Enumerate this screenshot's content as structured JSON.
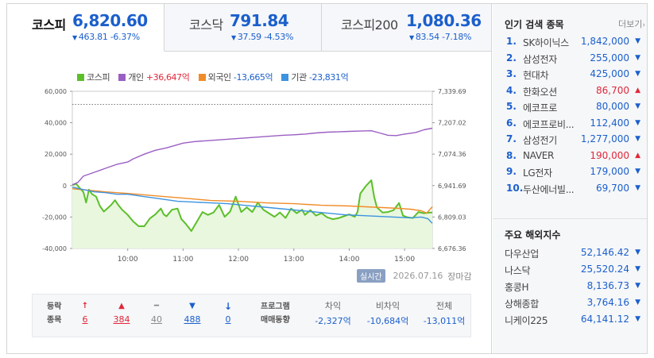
{
  "indices": [
    {
      "name": "코스피",
      "value": "6,820.60",
      "change": "463.81",
      "rate": "-6.37%",
      "active": true
    },
    {
      "name": "코스닥",
      "value": "791.84",
      "change": "37.59",
      "rate": "-4.53%",
      "active": false
    },
    {
      "name": "코스피200",
      "value": "1,080.36",
      "change": "83.54",
      "rate": "-7.18%",
      "active": false
    }
  ],
  "down_arrow": "▼",
  "legend": [
    {
      "name": "코스피",
      "value": "",
      "color": "#5cbf2a"
    },
    {
      "name": "개인",
      "value": "+36,647억",
      "color": "#9a5fc3",
      "tone": "red"
    },
    {
      "name": "외국인",
      "value": "-13,665억",
      "color": "#f08c28",
      "tone": "blue"
    },
    {
      "name": "기관",
      "value": "-23,831억",
      "color": "#3d93e0",
      "tone": "blue"
    }
  ],
  "chart_data": {
    "type": "line",
    "left_axis": {
      "ticks": [
        "60,000",
        "40,000",
        "20,000",
        "0",
        "-20,000",
        "-40,000"
      ],
      "min": -40000,
      "max": 60000
    },
    "right_axis": {
      "ticks": [
        "7,339.69",
        "7,207.02",
        "7,074.36",
        "6,941.69",
        "6,809.03",
        "6,676.36"
      ],
      "min": 6676.36,
      "max": 7339.69
    },
    "x_ticks": [
      "10:00",
      "11:00",
      "12:00",
      "13:00",
      "14:00",
      "15:00"
    ],
    "x_range": [
      9.0,
      15.5
    ],
    "reference_line": 7284.3,
    "series": [
      {
        "name": "코스피",
        "color": "#5cbf2a",
        "axis": "right",
        "fill": true,
        "points": [
          [
            9.0,
            6944
          ],
          [
            9.07,
            6949
          ],
          [
            9.13,
            6932
          ],
          [
            9.2,
            6915
          ],
          [
            9.25,
            6870
          ],
          [
            9.3,
            6925
          ],
          [
            9.36,
            6905
          ],
          [
            9.43,
            6895
          ],
          [
            9.5,
            6855
          ],
          [
            9.57,
            6832
          ],
          [
            9.63,
            6845
          ],
          [
            9.7,
            6860
          ],
          [
            9.77,
            6880
          ],
          [
            9.83,
            6860
          ],
          [
            9.9,
            6840
          ],
          [
            10.0,
            6818
          ],
          [
            10.1,
            6790
          ],
          [
            10.2,
            6770
          ],
          [
            10.3,
            6770
          ],
          [
            10.4,
            6803
          ],
          [
            10.5,
            6820
          ],
          [
            10.6,
            6845
          ],
          [
            10.65,
            6820
          ],
          [
            10.7,
            6812
          ],
          [
            10.8,
            6840
          ],
          [
            10.9,
            6845
          ],
          [
            10.97,
            6800
          ],
          [
            11.05,
            6780
          ],
          [
            11.15,
            6750
          ],
          [
            11.25,
            6790
          ],
          [
            11.35,
            6830
          ],
          [
            11.45,
            6818
          ],
          [
            11.55,
            6828
          ],
          [
            11.65,
            6860
          ],
          [
            11.75,
            6810
          ],
          [
            11.85,
            6832
          ],
          [
            11.95,
            6895
          ],
          [
            12.05,
            6830
          ],
          [
            12.15,
            6850
          ],
          [
            12.25,
            6830
          ],
          [
            12.35,
            6870
          ],
          [
            12.45,
            6840
          ],
          [
            12.55,
            6825
          ],
          [
            12.65,
            6810
          ],
          [
            12.75,
            6828
          ],
          [
            12.85,
            6805
          ],
          [
            12.95,
            6845
          ],
          [
            13.05,
            6825
          ],
          [
            13.15,
            6840
          ],
          [
            13.2,
            6818
          ],
          [
            13.3,
            6838
          ],
          [
            13.4,
            6815
          ],
          [
            13.5,
            6825
          ],
          [
            13.6,
            6808
          ],
          [
            13.7,
            6800
          ],
          [
            13.8,
            6804
          ],
          [
            13.9,
            6812
          ],
          [
            14.0,
            6820
          ],
          [
            14.1,
            6810
          ],
          [
            14.15,
            6830
          ],
          [
            14.2,
            6908
          ],
          [
            14.3,
            6940
          ],
          [
            14.4,
            6964
          ],
          [
            14.45,
            6895
          ],
          [
            14.5,
            6850
          ],
          [
            14.6,
            6828
          ],
          [
            14.7,
            6830
          ],
          [
            14.8,
            6838
          ],
          [
            14.9,
            6868
          ],
          [
            14.97,
            6815
          ],
          [
            15.05,
            6808
          ],
          [
            15.15,
            6805
          ],
          [
            15.25,
            6830
          ],
          [
            15.35,
            6825
          ],
          [
            15.45,
            6828
          ],
          [
            15.5,
            6828
          ]
        ]
      },
      {
        "name": "개인",
        "color": "#9a5fc3",
        "axis": "left",
        "points": [
          [
            9.0,
            500
          ],
          [
            9.1,
            2000
          ],
          [
            9.2,
            6000
          ],
          [
            9.4,
            8500
          ],
          [
            9.6,
            11000
          ],
          [
            9.8,
            13500
          ],
          [
            10.0,
            15000
          ],
          [
            10.1,
            17000
          ],
          [
            10.3,
            20000
          ],
          [
            10.5,
            22500
          ],
          [
            10.7,
            24000
          ],
          [
            10.9,
            26000
          ],
          [
            11.0,
            27000
          ],
          [
            11.2,
            28000
          ],
          [
            11.4,
            28500
          ],
          [
            11.6,
            29000
          ],
          [
            11.8,
            29500
          ],
          [
            12.0,
            30000
          ],
          [
            12.2,
            30500
          ],
          [
            12.4,
            31000
          ],
          [
            12.6,
            31500
          ],
          [
            12.8,
            32000
          ],
          [
            13.0,
            32300
          ],
          [
            13.2,
            32800
          ],
          [
            13.4,
            33500
          ],
          [
            13.6,
            34000
          ],
          [
            13.8,
            34200
          ],
          [
            14.0,
            34500
          ],
          [
            14.2,
            34700
          ],
          [
            14.4,
            34900
          ],
          [
            14.55,
            33500
          ],
          [
            14.7,
            32000
          ],
          [
            14.85,
            31800
          ],
          [
            15.0,
            32800
          ],
          [
            15.2,
            33800
          ],
          [
            15.35,
            35500
          ],
          [
            15.5,
            36500
          ]
        ]
      },
      {
        "name": "외국인",
        "color": "#f08c28",
        "axis": "left",
        "points": [
          [
            9.0,
            -2000
          ],
          [
            9.3,
            -3000
          ],
          [
            9.6,
            -4000
          ],
          [
            10.0,
            -5000
          ],
          [
            10.5,
            -6500
          ],
          [
            11.0,
            -8000
          ],
          [
            11.5,
            -9500
          ],
          [
            12.0,
            -10000
          ],
          [
            12.5,
            -11000
          ],
          [
            13.0,
            -11500
          ],
          [
            13.5,
            -12500
          ],
          [
            14.0,
            -13000
          ],
          [
            14.3,
            -13500
          ],
          [
            14.6,
            -14000
          ],
          [
            14.9,
            -14500
          ],
          [
            15.1,
            -15000
          ],
          [
            15.3,
            -16000
          ],
          [
            15.4,
            -17500
          ],
          [
            15.5,
            -13500
          ]
        ]
      },
      {
        "name": "기관",
        "color": "#3d93e0",
        "axis": "left",
        "points": [
          [
            9.0,
            -1000
          ],
          [
            9.2,
            -2500
          ],
          [
            9.4,
            -4000
          ],
          [
            9.6,
            -4500
          ],
          [
            9.8,
            -5500
          ],
          [
            10.0,
            -5500
          ],
          [
            10.3,
            -7000
          ],
          [
            10.6,
            -8500
          ],
          [
            10.9,
            -10000
          ],
          [
            11.2,
            -10500
          ],
          [
            11.5,
            -11000
          ],
          [
            11.8,
            -11500
          ],
          [
            12.1,
            -12500
          ],
          [
            12.4,
            -13500
          ],
          [
            12.7,
            -14500
          ],
          [
            13.0,
            -15500
          ],
          [
            13.3,
            -16500
          ],
          [
            13.6,
            -17500
          ],
          [
            13.9,
            -18500
          ],
          [
            14.2,
            -19000
          ],
          [
            14.5,
            -19500
          ],
          [
            14.8,
            -20000
          ],
          [
            15.1,
            -20500
          ],
          [
            15.3,
            -20000
          ],
          [
            15.42,
            -21000
          ],
          [
            15.5,
            -24000
          ]
        ]
      }
    ]
  },
  "chart_footer": {
    "live": "실시간",
    "date": "2026.07.16",
    "status": "장마감"
  },
  "stats": {
    "header": [
      "등락",
      "종목"
    ],
    "columns": [
      {
        "kind": "upper",
        "icon": "↑",
        "count": "6"
      },
      {
        "kind": "up",
        "icon": "▲",
        "count": "384"
      },
      {
        "kind": "flat",
        "icon": "━",
        "count": "40"
      },
      {
        "kind": "down",
        "icon": "▼",
        "count": "488"
      },
      {
        "kind": "lower",
        "icon": "↓",
        "count": "0"
      }
    ],
    "program_header": [
      "프로그램",
      "매매동향"
    ],
    "program": [
      {
        "label": "차익",
        "value": "-2,327억"
      },
      {
        "label": "비차익",
        "value": "-10,684억"
      },
      {
        "label": "전체",
        "value": "-13,011억"
      }
    ]
  },
  "popular": {
    "title": "인기 검색 종목",
    "more": "더보기",
    "items": [
      {
        "rank": "1.",
        "name": "SK하이닉스",
        "price": "1,842,000",
        "dir": "down"
      },
      {
        "rank": "2.",
        "name": "삼성전자",
        "price": "255,000",
        "dir": "down"
      },
      {
        "rank": "3.",
        "name": "현대차",
        "price": "425,000",
        "dir": "down"
      },
      {
        "rank": "4.",
        "name": "한화오션",
        "price": "86,700",
        "dir": "up"
      },
      {
        "rank": "5.",
        "name": "에코프로",
        "price": "80,000",
        "dir": "down"
      },
      {
        "rank": "6.",
        "name": "에코프로비...",
        "price": "112,400",
        "dir": "down"
      },
      {
        "rank": "7.",
        "name": "삼성전기",
        "price": "1,277,000",
        "dir": "down"
      },
      {
        "rank": "8.",
        "name": "NAVER",
        "price": "190,000",
        "dir": "up"
      },
      {
        "rank": "9.",
        "name": "LG전자",
        "price": "179,000",
        "dir": "down"
      },
      {
        "rank": "10.",
        "name": "두산에너빌...",
        "price": "69,700",
        "dir": "down"
      }
    ]
  },
  "world": {
    "title": "주요 해외지수",
    "items": [
      {
        "name": "다우산업",
        "value": "52,146.42"
      },
      {
        "name": "나스닥",
        "value": "25,520.24"
      },
      {
        "name": "홍콩H",
        "value": "8,136.73"
      },
      {
        "name": "상해종합",
        "value": "3,764.16"
      },
      {
        "name": "니케이225",
        "value": "64,141.12"
      }
    ]
  }
}
